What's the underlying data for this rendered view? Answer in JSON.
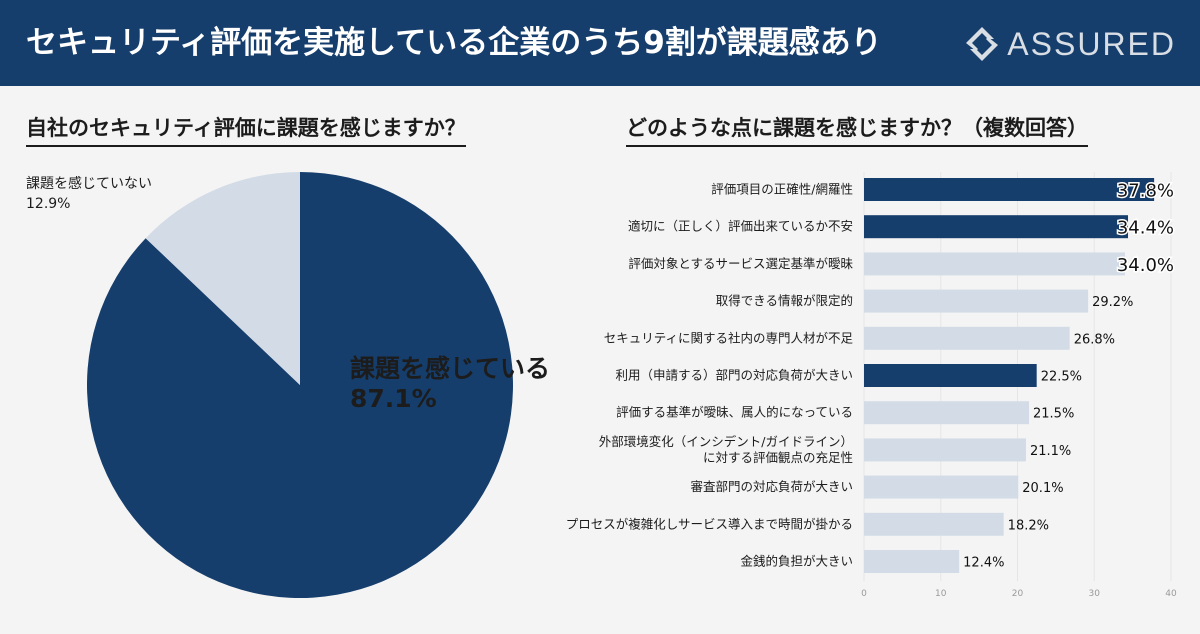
{
  "header": {
    "title": "セキュリティ評価を実施している企業のうち9割が課題感あり",
    "brand": "ASSURED"
  },
  "left_section": {
    "title": "自社のセキュリティ評価に課題を感じますか？"
  },
  "right_section": {
    "title": "どのような点に課題を感じますか？（複数回答）"
  },
  "colors": {
    "dark": "#163e6c",
    "light": "#d3dce6"
  },
  "chart_data": [
    {
      "type": "pie",
      "title": "自社のセキュリティ評価に課題を感じますか？",
      "slices": [
        {
          "label": "課題を感じている",
          "value": 87.1,
          "value_label": "87.1%",
          "color": "#163e6c"
        },
        {
          "label": "課題を感じていない",
          "value": 12.9,
          "value_label": "12.9%",
          "color": "#d3dce6"
        }
      ]
    },
    {
      "type": "bar",
      "orientation": "horizontal",
      "title": "どのような点に課題を感じますか？（複数回答）",
      "categories": [
        "評価項目の正確性/網羅性",
        "適切に（正しく）評価出来ているか不安",
        "評価対象とするサービス選定基準が曖昧",
        "取得できる情報が限定的",
        "セキュリティに関する社内の専門人材が不足",
        "利用（申請する）部門の対応負荷が大きい",
        "評価する基準が曖昧、属人的になっている",
        "外部環境変化（インシデント/ガイドライン）\nに対する評価観点の充足性",
        "審査部門の対応負荷が大きい",
        "プロセスが複雑化しサービス導入まで時間が掛かる",
        "金銭的負担が大きい"
      ],
      "values": [
        37.8,
        34.4,
        34.0,
        29.2,
        26.8,
        22.5,
        21.5,
        21.1,
        20.1,
        18.2,
        12.4
      ],
      "value_labels": [
        "37.8%",
        "34.4%",
        "34.0%",
        "29.2%",
        "26.8%",
        "22.5%",
        "21.5%",
        "21.1%",
        "20.1%",
        "18.2%",
        "12.4%"
      ],
      "highlight": [
        true,
        true,
        false,
        false,
        false,
        true,
        false,
        false,
        false,
        false,
        false
      ],
      "xlim": [
        0,
        40
      ],
      "xticks": [
        "0",
        "10",
        "20",
        "30",
        "40"
      ],
      "grid": true
    }
  ]
}
